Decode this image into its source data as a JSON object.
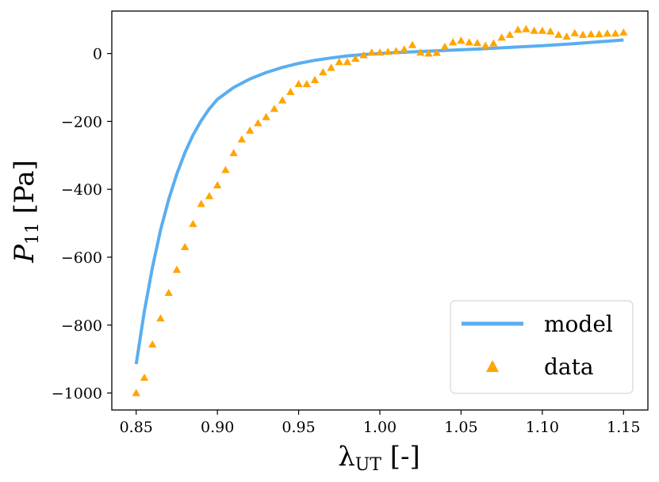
{
  "chart_data": {
    "type": "line+scatter",
    "xlim": [
      0.835,
      1.165
    ],
    "ylim": [
      -1050,
      125
    ],
    "xticks": [
      0.85,
      0.9,
      0.95,
      1.0,
      1.05,
      1.1,
      1.15
    ],
    "xtick_labels": [
      "0.85",
      "0.90",
      "0.95",
      "1.00",
      "1.05",
      "1.10",
      "1.15"
    ],
    "yticks": [
      0,
      -200,
      -400,
      -600,
      -800,
      -1000
    ],
    "ytick_labels": [
      "0",
      "−200",
      "−400",
      "−600",
      "−800",
      "−1000"
    ],
    "xlabel": {
      "main": "λ",
      "sub": "UT",
      "rest": " [-]"
    },
    "ylabel": {
      "main": "P",
      "sub": "11",
      "rest": " [Pa]"
    },
    "grid": false,
    "legend_position": "lower-right",
    "series": [
      {
        "name": "model",
        "kind": "line",
        "color": "#5aaef0",
        "x": [
          0.85,
          0.855,
          0.86,
          0.865,
          0.87,
          0.875,
          0.88,
          0.885,
          0.89,
          0.895,
          0.9,
          0.91,
          0.92,
          0.93,
          0.94,
          0.95,
          0.96,
          0.97,
          0.98,
          0.99,
          1.0,
          1.01,
          1.02,
          1.04,
          1.06,
          1.08,
          1.1,
          1.12,
          1.15
        ],
        "y": [
          -915,
          -760,
          -630,
          -520,
          -430,
          -355,
          -292,
          -240,
          -198,
          -163,
          -135,
          -100,
          -75,
          -56,
          -41,
          -29,
          -20,
          -13,
          -7,
          -3,
          0,
          2.5,
          5,
          9,
          13,
          18,
          23,
          29,
          40
        ]
      },
      {
        "name": "data",
        "kind": "scatter",
        "marker": "triangle",
        "color": "#ffa500",
        "x": [
          0.85,
          0.855,
          0.86,
          0.865,
          0.87,
          0.875,
          0.88,
          0.885,
          0.89,
          0.895,
          0.9,
          0.905,
          0.91,
          0.915,
          0.92,
          0.925,
          0.93,
          0.935,
          0.94,
          0.945,
          0.95,
          0.955,
          0.96,
          0.965,
          0.97,
          0.975,
          0.98,
          0.985,
          0.99,
          0.995,
          1.0,
          1.005,
          1.01,
          1.015,
          1.02,
          1.025,
          1.03,
          1.035,
          1.04,
          1.045,
          1.05,
          1.055,
          1.06,
          1.065,
          1.07,
          1.075,
          1.08,
          1.085,
          1.09,
          1.095,
          1.1,
          1.105,
          1.11,
          1.115,
          1.12,
          1.125,
          1.13,
          1.135,
          1.14,
          1.145,
          1.15
        ],
        "y": [
          -1000,
          -955,
          -857,
          -780,
          -705,
          -637,
          -570,
          -502,
          -443,
          -420,
          -388,
          -343,
          -293,
          -253,
          -227,
          -205,
          -187,
          -163,
          -138,
          -113,
          -90,
          -90,
          -78,
          -55,
          -42,
          -25,
          -25,
          -15,
          -5,
          3,
          3,
          5,
          7,
          12,
          25,
          3,
          0,
          2,
          20,
          33,
          38,
          33,
          31,
          23,
          30,
          47,
          55,
          70,
          72,
          67,
          67,
          65,
          55,
          50,
          60,
          55,
          57,
          57,
          59,
          59,
          62
        ]
      }
    ]
  }
}
